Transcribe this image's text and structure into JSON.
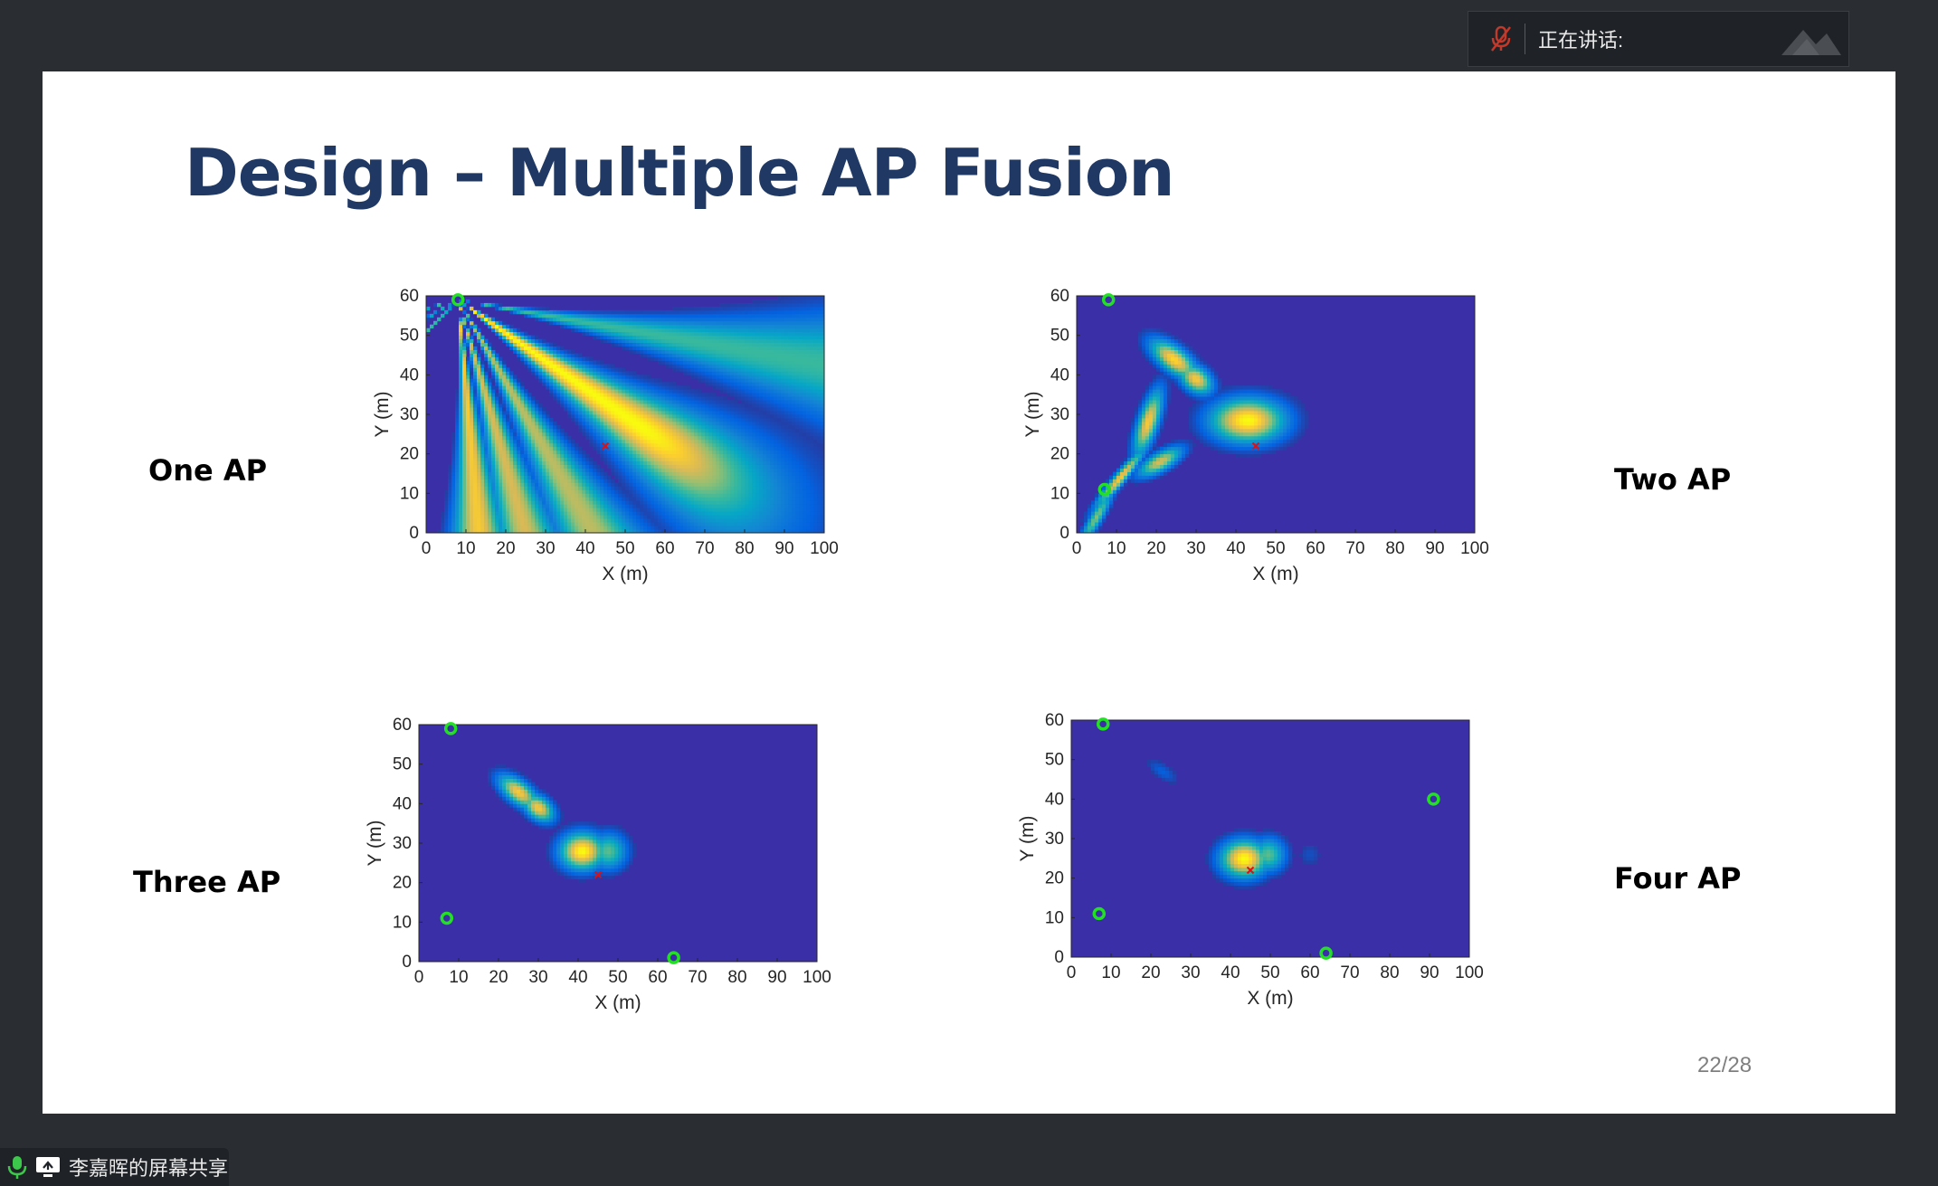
{
  "top_bar": {
    "speaking_label": "正在讲话:",
    "mic_icon": "mic-muted-icon"
  },
  "slide": {
    "title": "Design – Multiple AP Fusion",
    "page_number": "22/28",
    "labels": {
      "one": "One AP",
      "two": "Two AP",
      "three": "Three AP",
      "four": "Four AP"
    }
  },
  "chart_data": [
    {
      "type": "heatmap",
      "label": "One AP",
      "xlabel": "X (m)",
      "ylabel": "Y (m)",
      "xlim": [
        0,
        100
      ],
      "ylim": [
        0,
        60
      ],
      "xticks": [
        "0",
        "10",
        "20",
        "30",
        "40",
        "50",
        "60",
        "70",
        "80",
        "90",
        "100"
      ],
      "yticks": [
        "0",
        "10",
        "20",
        "30",
        "40",
        "50",
        "60"
      ],
      "colormap": "parula",
      "background_color": "#3b2fa8",
      "access_points": [
        [
          8,
          59
        ]
      ],
      "target": [
        45,
        22
      ],
      "beams_from": [
        8,
        59
      ],
      "beams": [
        {
          "angle_deg": -35,
          "strength": 1.0,
          "width": 2.8
        },
        {
          "angle_deg": -60,
          "strength": 0.7,
          "width": 1.8
        },
        {
          "angle_deg": -74,
          "strength": 0.75,
          "width": 1.5
        },
        {
          "angle_deg": -85,
          "strength": 0.85,
          "width": 1.3
        },
        {
          "angle_deg": -10,
          "strength": 0.5,
          "width": 1.0
        },
        {
          "angle_deg": -135,
          "strength": 0.5,
          "width": 1.0
        },
        {
          "angle_deg": -150,
          "strength": 0.5,
          "width": 1.0
        },
        {
          "angle_deg": -165,
          "strength": 0.5,
          "width": 1.0
        }
      ]
    },
    {
      "type": "heatmap",
      "label": "Two AP",
      "xlabel": "X (m)",
      "ylabel": "Y (m)",
      "xlim": [
        0,
        100
      ],
      "ylim": [
        0,
        60
      ],
      "xticks": [
        "0",
        "10",
        "20",
        "30",
        "40",
        "50",
        "60",
        "70",
        "80",
        "90",
        "100"
      ],
      "yticks": [
        "0",
        "10",
        "20",
        "30",
        "40",
        "50",
        "60"
      ],
      "colormap": "parula",
      "background_color": "#3b2fa8",
      "access_points": [
        [
          8,
          59
        ],
        [
          7,
          11
        ]
      ],
      "target": [
        45,
        22
      ],
      "blobs": [
        {
          "x": 43,
          "y": 28.5,
          "sx": 6.0,
          "sy": 3.6,
          "angle_deg": 0,
          "v": 1.0
        },
        {
          "x": 24.5,
          "y": 44,
          "sx": 4.5,
          "sy": 2.0,
          "angle_deg": -38,
          "v": 0.9
        },
        {
          "x": 30,
          "y": 39,
          "sx": 3.0,
          "sy": 2.0,
          "angle_deg": -38,
          "v": 0.85
        },
        {
          "x": 18,
          "y": 28,
          "sx": 5.5,
          "sy": 1.6,
          "angle_deg": 72,
          "v": 0.85
        },
        {
          "x": 21,
          "y": 18,
          "sx": 4.0,
          "sy": 1.5,
          "angle_deg": 30,
          "v": 0.75
        },
        {
          "x": 11,
          "y": 14,
          "sx": 6.0,
          "sy": 0.9,
          "angle_deg": 50,
          "v": 0.85
        },
        {
          "x": 5,
          "y": 4,
          "sx": 5.0,
          "sy": 1.0,
          "angle_deg": 60,
          "v": 0.6
        }
      ]
    },
    {
      "type": "heatmap",
      "label": "Three AP",
      "xlabel": "X (m)",
      "ylabel": "Y (m)",
      "xlim": [
        0,
        100
      ],
      "ylim": [
        0,
        60
      ],
      "xticks": [
        "0",
        "10",
        "20",
        "30",
        "40",
        "50",
        "60",
        "70",
        "80",
        "90",
        "100"
      ],
      "yticks": [
        "0",
        "10",
        "20",
        "30",
        "40",
        "50",
        "60"
      ],
      "colormap": "parula",
      "background_color": "#3b2fa8",
      "access_points": [
        [
          8,
          59
        ],
        [
          7,
          11
        ],
        [
          64,
          1
        ]
      ],
      "target": [
        45,
        22
      ],
      "blobs": [
        {
          "x": 41,
          "y": 28,
          "sx": 3.6,
          "sy": 3.0,
          "angle_deg": 0,
          "v": 1.0
        },
        {
          "x": 47.5,
          "y": 28,
          "sx": 3.0,
          "sy": 3.0,
          "angle_deg": 0,
          "v": 0.55
        },
        {
          "x": 25,
          "y": 43,
          "sx": 3.8,
          "sy": 1.8,
          "angle_deg": -38,
          "v": 0.85
        },
        {
          "x": 30,
          "y": 39,
          "sx": 2.8,
          "sy": 1.8,
          "angle_deg": -38,
          "v": 0.85
        }
      ]
    },
    {
      "type": "heatmap",
      "label": "Four AP",
      "xlabel": "X (m)",
      "ylabel": "Y (m)",
      "xlim": [
        0,
        100
      ],
      "ylim": [
        0,
        60
      ],
      "xticks": [
        "0",
        "10",
        "20",
        "30",
        "40",
        "50",
        "60",
        "70",
        "80",
        "90",
        "100"
      ],
      "yticks": [
        "0",
        "10",
        "20",
        "30",
        "40",
        "50",
        "60"
      ],
      "colormap": "parula",
      "background_color": "#3b2fa8",
      "access_points": [
        [
          8,
          59
        ],
        [
          7,
          11
        ],
        [
          64,
          1
        ],
        [
          91,
          40
        ]
      ],
      "target": [
        45,
        22
      ],
      "blobs": [
        {
          "x": 43.5,
          "y": 25,
          "sx": 3.8,
          "sy": 3.0,
          "angle_deg": 0,
          "v": 1.0
        },
        {
          "x": 49.5,
          "y": 26,
          "sx": 2.8,
          "sy": 2.8,
          "angle_deg": 0,
          "v": 0.55
        },
        {
          "x": 23,
          "y": 47,
          "sx": 3.0,
          "sy": 1.3,
          "angle_deg": -35,
          "v": 0.12
        },
        {
          "x": 60,
          "y": 26,
          "sx": 2.0,
          "sy": 2.0,
          "angle_deg": 0,
          "v": 0.08
        }
      ]
    }
  ],
  "bottom_bar": {
    "share_label": "李嘉晖的屏幕共享",
    "mic_icon": "mic-icon",
    "screen_icon": "screen-share-icon"
  }
}
